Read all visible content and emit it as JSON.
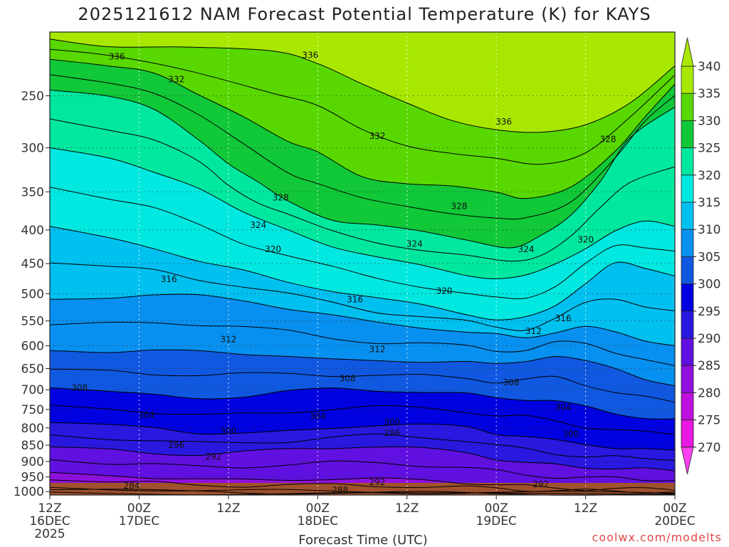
{
  "chart_data": {
    "type": "heatmap",
    "title": "2025121612 NAM Forecast Potential Temperature (K) for KAYS",
    "xlabel": "Forecast Time (UTC)",
    "ylabel": "",
    "x_ticks": [
      {
        "time": "12Z",
        "date": "16DEC",
        "year": "2025"
      },
      {
        "time": "00Z",
        "date": "17DEC",
        "year": ""
      },
      {
        "time": "12Z",
        "date": "",
        "year": ""
      },
      {
        "time": "00Z",
        "date": "18DEC",
        "year": ""
      },
      {
        "time": "12Z",
        "date": "",
        "year": ""
      },
      {
        "time": "00Z",
        "date": "19DEC",
        "year": ""
      },
      {
        "time": "12Z",
        "date": "",
        "year": ""
      },
      {
        "time": "00Z",
        "date": "20DEC",
        "year": ""
      }
    ],
    "xlim_hours": [
      0,
      84
    ],
    "y_ticks": [
      250,
      300,
      350,
      400,
      450,
      500,
      550,
      600,
      650,
      700,
      750,
      800,
      850,
      900,
      950,
      1000
    ],
    "ylim_hpa": [
      200,
      1012
    ],
    "y_scale": "log",
    "colorbar": {
      "levels": [
        340,
        335,
        330,
        325,
        320,
        315,
        310,
        305,
        300,
        295,
        290,
        285,
        280,
        275,
        270
      ],
      "colors": [
        "#a8e800",
        "#58d800",
        "#10c838",
        "#00e8a0",
        "#00e8e0",
        "#00c0f0",
        "#0890f0",
        "#1058e0",
        "#0000e0",
        "#2818e0",
        "#6010e0",
        "#9010e0",
        "#c010e0",
        "#e818e0",
        "#ff40f0"
      ]
    },
    "layers": [
      {
        "value": 340,
        "color": "#a8e800",
        "pts": [
          [
            0,
            150
          ],
          [
            84,
            150
          ]
        ]
      },
      {
        "value": 336,
        "color": "#58d800",
        "pts": [
          [
            0,
            205
          ],
          [
            8,
            210
          ],
          [
            18,
            212
          ],
          [
            30,
            214
          ],
          [
            36,
            222
          ],
          [
            42,
            240
          ],
          [
            48,
            258
          ],
          [
            54,
            272
          ],
          [
            60,
            280
          ],
          [
            66,
            285
          ],
          [
            72,
            278
          ],
          [
            78,
            255
          ],
          [
            84,
            225
          ]
        ]
      },
      {
        "value": 332,
        "color": "#10c838",
        "pts": [
          [
            0,
            220
          ],
          [
            8,
            226
          ],
          [
            14,
            232
          ],
          [
            20,
            248
          ],
          [
            26,
            268
          ],
          [
            32,
            295
          ],
          [
            36,
            305
          ],
          [
            42,
            330
          ],
          [
            48,
            340
          ],
          [
            54,
            345
          ],
          [
            60,
            350
          ],
          [
            64,
            356
          ],
          [
            70,
            345
          ],
          [
            76,
            305
          ],
          [
            80,
            268
          ],
          [
            84,
            240
          ]
        ]
      },
      {
        "value": 328,
        "color": "#00e8a0",
        "pts": [
          [
            0,
            245
          ],
          [
            8,
            252
          ],
          [
            14,
            262
          ],
          [
            20,
            290
          ],
          [
            24,
            318
          ],
          [
            28,
            340
          ],
          [
            32,
            360
          ],
          [
            38,
            385
          ],
          [
            44,
            395
          ],
          [
            50,
            403
          ],
          [
            56,
            412
          ],
          [
            62,
            425
          ],
          [
            66,
            410
          ],
          [
            70,
            380
          ],
          [
            74,
            335
          ],
          [
            78,
            290
          ],
          [
            84,
            260
          ]
        ]
      },
      {
        "value": 324,
        "color": "#00e8e0",
        "pts": [
          [
            0,
            300
          ],
          [
            8,
            312
          ],
          [
            14,
            325
          ],
          [
            20,
            345
          ],
          [
            26,
            378
          ],
          [
            32,
            400
          ],
          [
            38,
            422
          ],
          [
            44,
            440
          ],
          [
            50,
            455
          ],
          [
            56,
            468
          ],
          [
            60,
            472
          ],
          [
            64,
            470
          ],
          [
            68,
            452
          ],
          [
            72,
            425
          ],
          [
            76,
            400
          ],
          [
            80,
            390
          ],
          [
            84,
            395
          ]
        ]
      },
      {
        "value": 320,
        "color": "#00c0f0",
        "pts": [
          [
            0,
            395
          ],
          [
            8,
            410
          ],
          [
            14,
            425
          ],
          [
            20,
            448
          ],
          [
            26,
            462
          ],
          [
            32,
            478
          ],
          [
            38,
            495
          ],
          [
            44,
            510
          ],
          [
            50,
            520
          ],
          [
            56,
            535
          ],
          [
            60,
            548
          ],
          [
            64,
            545
          ],
          [
            68,
            520
          ],
          [
            72,
            480
          ],
          [
            76,
            450
          ],
          [
            80,
            460
          ],
          [
            84,
            470
          ]
        ]
      },
      {
        "value": 316,
        "color": "#0890f0",
        "pts": [
          [
            0,
            510
          ],
          [
            8,
            505
          ],
          [
            14,
            502
          ],
          [
            20,
            505
          ],
          [
            26,
            512
          ],
          [
            32,
            525
          ],
          [
            38,
            540
          ],
          [
            44,
            555
          ],
          [
            50,
            562
          ],
          [
            56,
            570
          ],
          [
            60,
            578
          ],
          [
            64,
            585
          ],
          [
            68,
            570
          ],
          [
            72,
            560
          ],
          [
            76,
            575
          ],
          [
            80,
            590
          ],
          [
            84,
            600
          ]
        ]
      },
      {
        "value": 312,
        "color": "#1058e0",
        "pts": [
          [
            0,
            610
          ],
          [
            8,
            612
          ],
          [
            14,
            612
          ],
          [
            20,
            612
          ],
          [
            26,
            615
          ],
          [
            32,
            622
          ],
          [
            38,
            632
          ],
          [
            44,
            632
          ],
          [
            50,
            632
          ],
          [
            56,
            635
          ],
          [
            60,
            642
          ],
          [
            64,
            632
          ],
          [
            68,
            620
          ],
          [
            72,
            635
          ],
          [
            76,
            652
          ],
          [
            80,
            672
          ],
          [
            84,
            690
          ]
        ]
      },
      {
        "value": 308,
        "color": "#0000e0",
        "pts": [
          [
            0,
            695
          ],
          [
            8,
            705
          ],
          [
            14,
            715
          ],
          [
            20,
            720
          ],
          [
            26,
            715
          ],
          [
            32,
            705
          ],
          [
            38,
            698
          ],
          [
            44,
            700
          ],
          [
            50,
            705
          ],
          [
            56,
            712
          ],
          [
            60,
            720
          ],
          [
            64,
            722
          ],
          [
            68,
            728
          ],
          [
            72,
            745
          ],
          [
            76,
            760
          ],
          [
            80,
            770
          ],
          [
            84,
            775
          ]
        ]
      },
      {
        "value": 304,
        "color": "#2818e0",
        "pts": [
          [
            0,
            785
          ],
          [
            8,
            795
          ],
          [
            14,
            800
          ],
          [
            20,
            812
          ],
          [
            26,
            815
          ],
          [
            32,
            812
          ],
          [
            38,
            800
          ],
          [
            44,
            790
          ],
          [
            50,
            792
          ],
          [
            56,
            800
          ],
          [
            60,
            815
          ],
          [
            64,
            822
          ],
          [
            68,
            838
          ],
          [
            72,
            850
          ],
          [
            76,
            855
          ],
          [
            80,
            860
          ],
          [
            84,
            865
          ]
        ]
      },
      {
        "value": 300,
        "color": "#6010e0",
        "pts": [
          [
            0,
            855
          ],
          [
            8,
            865
          ],
          [
            14,
            872
          ],
          [
            20,
            878
          ],
          [
            26,
            872
          ],
          [
            32,
            862
          ],
          [
            38,
            855
          ],
          [
            44,
            855
          ],
          [
            50,
            862
          ],
          [
            56,
            872
          ],
          [
            60,
            890
          ],
          [
            64,
            905
          ],
          [
            68,
            912
          ],
          [
            72,
            918
          ],
          [
            76,
            920
          ],
          [
            80,
            925
          ],
          [
            84,
            930
          ]
        ]
      },
      {
        "value": 296,
        "color": "#9010e0",
        "pts": [
          [
            0,
            935
          ],
          [
            8,
            945
          ],
          [
            14,
            950
          ],
          [
            20,
            958
          ],
          [
            26,
            962
          ],
          [
            32,
            958
          ],
          [
            38,
            955
          ],
          [
            44,
            958
          ],
          [
            50,
            962
          ],
          [
            56,
            968
          ],
          [
            60,
            975
          ],
          [
            64,
            982
          ],
          [
            68,
            988
          ],
          [
            72,
            990
          ],
          [
            76,
            990
          ],
          [
            80,
            992
          ],
          [
            84,
            995
          ]
        ]
      },
      {
        "value": 292,
        "color": "#c010e0",
        "pts": [
          [
            0,
            985
          ],
          [
            10,
            990
          ],
          [
            20,
            995
          ],
          [
            30,
            998
          ],
          [
            40,
            1000
          ],
          [
            50,
            1002
          ],
          [
            60,
            1004
          ],
          [
            70,
            1004
          ],
          [
            84,
            1006
          ]
        ]
      },
      {
        "value": 288,
        "color": "#e818e0",
        "pts": [
          [
            0,
            1002
          ],
          [
            20,
            1006
          ],
          [
            40,
            1008
          ],
          [
            60,
            1009
          ],
          [
            84,
            1010
          ]
        ]
      }
    ],
    "contour_labels": [
      {
        "text": "336",
        "t": 9,
        "p": 218
      },
      {
        "text": "336",
        "t": 35,
        "p": 217
      },
      {
        "text": "332",
        "t": 17,
        "p": 236
      },
      {
        "text": "336",
        "t": 61,
        "p": 274
      },
      {
        "text": "332",
        "t": 44,
        "p": 288
      },
      {
        "text": "328",
        "t": 75,
        "p": 291
      },
      {
        "text": "328",
        "t": 31,
        "p": 357
      },
      {
        "text": "328",
        "t": 55,
        "p": 368
      },
      {
        "text": "324",
        "t": 28,
        "p": 393
      },
      {
        "text": "324",
        "t": 49,
        "p": 420
      },
      {
        "text": "324",
        "t": 64,
        "p": 428
      },
      {
        "text": "320",
        "t": 30,
        "p": 428
      },
      {
        "text": "320",
        "t": 72,
        "p": 414
      },
      {
        "text": "316",
        "t": 16,
        "p": 475
      },
      {
        "text": "316",
        "t": 41,
        "p": 510
      },
      {
        "text": "320",
        "t": 53,
        "p": 495
      },
      {
        "text": "316",
        "t": 69,
        "p": 545
      },
      {
        "text": "312",
        "t": 65,
        "p": 570
      },
      {
        "text": "312",
        "t": 24,
        "p": 587
      },
      {
        "text": "312",
        "t": 44,
        "p": 608
      },
      {
        "text": "308",
        "t": 4,
        "p": 695
      },
      {
        "text": "308",
        "t": 40,
        "p": 673
      },
      {
        "text": "308",
        "t": 62,
        "p": 682
      },
      {
        "text": "304",
        "t": 13,
        "p": 765
      },
      {
        "text": "304",
        "t": 36,
        "p": 768
      },
      {
        "text": "304",
        "t": 69,
        "p": 745
      },
      {
        "text": "300",
        "t": 24,
        "p": 810
      },
      {
        "text": "300",
        "t": 46,
        "p": 785
      },
      {
        "text": "300",
        "t": 70,
        "p": 818
      },
      {
        "text": "296",
        "t": 17,
        "p": 850
      },
      {
        "text": "296",
        "t": 46,
        "p": 815
      },
      {
        "text": "292",
        "t": 22,
        "p": 885
      },
      {
        "text": "292",
        "t": 44,
        "p": 968
      },
      {
        "text": "292",
        "t": 66,
        "p": 975
      },
      {
        "text": "288",
        "t": 39,
        "p": 995
      },
      {
        "text": "284",
        "t": 11,
        "p": 980
      }
    ],
    "ground_color": "#a0522d"
  },
  "credit": "coolwx.com/modelts"
}
